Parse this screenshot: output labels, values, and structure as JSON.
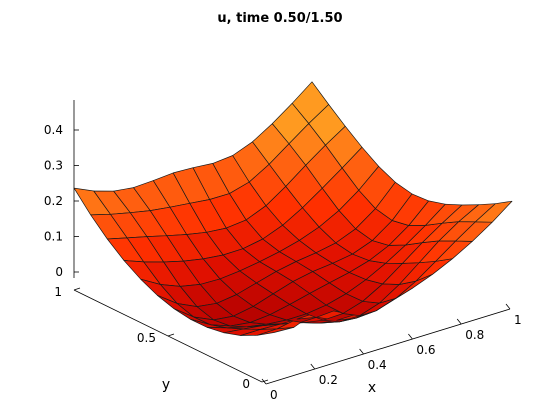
{
  "chart_data": {
    "type": "surface",
    "title": "u, time 0.50/1.50",
    "xlabel": "x",
    "ylabel": "y",
    "zlabel": "",
    "xlim": [
      0,
      1
    ],
    "ylim": [
      0,
      1
    ],
    "zlim": [
      0,
      0.45
    ],
    "x_ticks": [
      "0",
      "0.2",
      "0.4",
      "0.6",
      "0.8",
      "1"
    ],
    "y_ticks": [
      "0",
      "0.5",
      "1"
    ],
    "z_ticks": [
      "0",
      "0.1",
      "0.2",
      "0.3",
      "0.4"
    ],
    "grid_n": 13,
    "colormap": [
      "#b00000",
      "#e01000",
      "#ff3000",
      "#ff6010",
      "#ff9a20"
    ],
    "surface_description_values": {
      "corner_x0_y1": 0.28,
      "corner_x1_y1": 0.4,
      "corner_x1_y0": 0.24,
      "corner_x0_y0": 0.04,
      "center": 0.04
    }
  }
}
